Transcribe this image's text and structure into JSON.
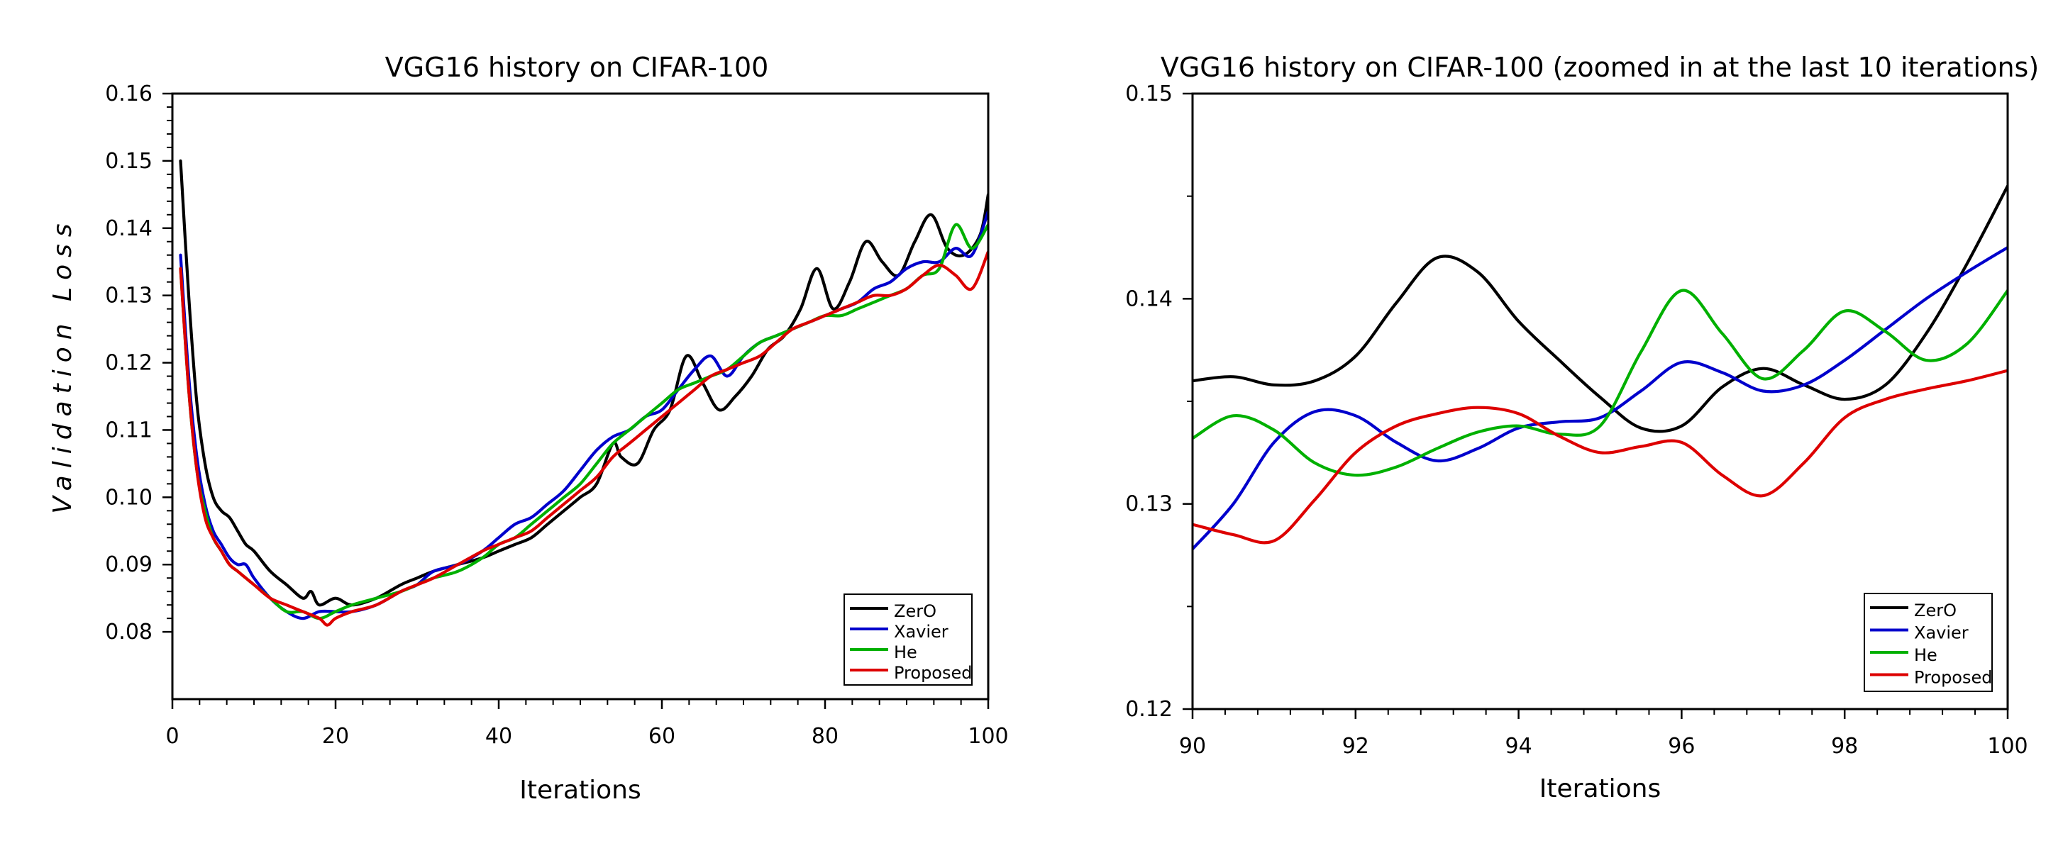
{
  "chart_data": [
    {
      "type": "line",
      "title": "VGG16 history on CIFAR-100",
      "xlabel": "Iterations",
      "ylabel": "Validation Loss",
      "xlim": [
        0,
        100
      ],
      "ylim": [
        0.07,
        0.16
      ],
      "xticks": [
        0,
        20,
        40,
        60,
        80,
        100
      ],
      "xtick_labels": [
        "0",
        "20",
        "40",
        "60",
        "80",
        "100"
      ],
      "yticks": [
        0.08,
        0.09,
        0.1,
        0.11,
        0.12,
        0.13,
        0.14,
        0.15,
        0.16
      ],
      "ytick_labels": [
        "0.08",
        "0.09",
        "0.10",
        "0.11",
        "0.12",
        "0.13",
        "0.14",
        "0.15",
        "0.16"
      ],
      "grid": false,
      "legend_position": "bottom-right",
      "series": [
        {
          "name": "ZerO",
          "color": "#000000",
          "x": [
            1,
            2,
            3,
            4,
            5,
            6,
            7,
            8,
            9,
            10,
            12,
            14,
            16,
            17,
            18,
            20,
            22,
            25,
            28,
            30,
            32,
            35,
            38,
            40,
            42,
            44,
            46,
            48,
            50,
            52,
            54,
            55,
            57,
            59,
            61,
            63,
            65,
            67,
            69,
            71,
            73,
            75,
            77,
            79,
            81,
            83,
            85,
            87,
            89,
            91,
            93,
            95,
            97,
            99,
            100
          ],
          "y": [
            0.15,
            0.13,
            0.114,
            0.105,
            0.1,
            0.098,
            0.097,
            0.095,
            0.093,
            0.092,
            0.089,
            0.087,
            0.085,
            0.086,
            0.084,
            0.085,
            0.084,
            0.085,
            0.087,
            0.088,
            0.089,
            0.09,
            0.091,
            0.092,
            0.093,
            0.094,
            0.096,
            0.098,
            0.1,
            0.102,
            0.108,
            0.106,
            0.105,
            0.11,
            0.113,
            0.121,
            0.117,
            0.113,
            0.115,
            0.118,
            0.122,
            0.124,
            0.128,
            0.134,
            0.128,
            0.132,
            0.138,
            0.135,
            0.133,
            0.138,
            0.142,
            0.137,
            0.136,
            0.139,
            0.145
          ]
        },
        {
          "name": "Xavier",
          "color": "#0000cc",
          "x": [
            1,
            2,
            3,
            4,
            5,
            6,
            7,
            8,
            9,
            10,
            12,
            14,
            16,
            18,
            20,
            22,
            25,
            28,
            30,
            32,
            35,
            38,
            40,
            42,
            44,
            46,
            48,
            50,
            52,
            54,
            56,
            58,
            60,
            62,
            64,
            66,
            68,
            70,
            72,
            74,
            76,
            78,
            80,
            82,
            84,
            86,
            88,
            90,
            92,
            94,
            96,
            98,
            100
          ],
          "y": [
            0.136,
            0.118,
            0.106,
            0.099,
            0.095,
            0.093,
            0.091,
            0.09,
            0.09,
            0.088,
            0.085,
            0.083,
            0.082,
            0.083,
            0.083,
            0.083,
            0.084,
            0.086,
            0.087,
            0.089,
            0.09,
            0.092,
            0.094,
            0.096,
            0.097,
            0.099,
            0.101,
            0.104,
            0.107,
            0.109,
            0.11,
            0.112,
            0.113,
            0.116,
            0.119,
            0.121,
            0.118,
            0.121,
            0.123,
            0.124,
            0.125,
            0.126,
            0.127,
            0.128,
            0.129,
            0.131,
            0.132,
            0.134,
            0.135,
            0.135,
            0.137,
            0.136,
            0.1425
          ]
        },
        {
          "name": "He",
          "color": "#00b000",
          "x": [
            1,
            2,
            3,
            4,
            5,
            6,
            7,
            8,
            9,
            10,
            12,
            14,
            16,
            18,
            20,
            22,
            25,
            28,
            30,
            32,
            35,
            38,
            40,
            42,
            44,
            46,
            48,
            50,
            52,
            54,
            56,
            58,
            60,
            62,
            64,
            66,
            68,
            70,
            72,
            74,
            76,
            78,
            80,
            82,
            84,
            86,
            88,
            90,
            92,
            94,
            96,
            98,
            100
          ],
          "y": [
            0.134,
            0.116,
            0.104,
            0.098,
            0.094,
            0.092,
            0.09,
            0.089,
            0.088,
            0.087,
            0.085,
            0.083,
            0.083,
            0.082,
            0.083,
            0.084,
            0.085,
            0.086,
            0.087,
            0.088,
            0.089,
            0.091,
            0.093,
            0.094,
            0.096,
            0.098,
            0.1,
            0.102,
            0.105,
            0.108,
            0.11,
            0.112,
            0.114,
            0.116,
            0.117,
            0.118,
            0.119,
            0.121,
            0.123,
            0.124,
            0.125,
            0.126,
            0.127,
            0.127,
            0.128,
            0.129,
            0.13,
            0.131,
            0.133,
            0.134,
            0.1405,
            0.137,
            0.1405
          ]
        },
        {
          "name": "Proposed",
          "color": "#dd0000",
          "x": [
            1,
            2,
            3,
            4,
            5,
            6,
            7,
            8,
            9,
            10,
            12,
            14,
            16,
            18,
            19,
            20,
            22,
            25,
            28,
            30,
            32,
            35,
            38,
            40,
            42,
            44,
            46,
            48,
            50,
            52,
            54,
            56,
            58,
            60,
            62,
            64,
            66,
            68,
            70,
            72,
            74,
            76,
            78,
            80,
            82,
            84,
            86,
            88,
            90,
            92,
            94,
            96,
            98,
            100
          ],
          "y": [
            0.134,
            0.116,
            0.104,
            0.097,
            0.094,
            0.092,
            0.09,
            0.089,
            0.088,
            0.087,
            0.085,
            0.084,
            0.083,
            0.082,
            0.081,
            0.082,
            0.083,
            0.084,
            0.086,
            0.087,
            0.088,
            0.09,
            0.092,
            0.093,
            0.094,
            0.095,
            0.097,
            0.099,
            0.101,
            0.103,
            0.106,
            0.108,
            0.11,
            0.112,
            0.114,
            0.116,
            0.118,
            0.119,
            0.12,
            0.121,
            0.123,
            0.125,
            0.126,
            0.127,
            0.128,
            0.129,
            0.13,
            0.13,
            0.131,
            0.133,
            0.1345,
            0.133,
            0.131,
            0.1365
          ]
        }
      ],
      "legend": [
        "ZerO",
        "Xavier",
        "He",
        "Proposed"
      ]
    },
    {
      "type": "line",
      "title": "VGG16 history on CIFAR-100  (zoomed in at the last 10 iterations)",
      "xlabel": "Iterations",
      "ylabel": "",
      "xlim": [
        90,
        100
      ],
      "ylim": [
        0.12,
        0.15
      ],
      "xticks": [
        90,
        92,
        94,
        96,
        98,
        100
      ],
      "xtick_labels": [
        "90",
        "92",
        "94",
        "96",
        "98",
        "100"
      ],
      "yticks": [
        0.12,
        0.13,
        0.14,
        0.15
      ],
      "ytick_labels": [
        "0.12",
        "0.13",
        "0.14",
        "0.15"
      ],
      "grid": false,
      "legend_position": "bottom-right",
      "series": [
        {
          "name": "ZerO",
          "color": "#000000",
          "x": [
            90,
            90.5,
            91,
            91.5,
            92,
            92.5,
            93,
            93.5,
            94,
            94.5,
            95,
            95.5,
            96,
            96.5,
            97,
            97.5,
            98,
            98.5,
            99,
            99.5,
            100
          ],
          "y": [
            0.136,
            0.1362,
            0.1358,
            0.136,
            0.1372,
            0.1398,
            0.142,
            0.1413,
            0.1389,
            0.137,
            0.1352,
            0.1337,
            0.1338,
            0.1357,
            0.1366,
            0.1358,
            0.1351,
            0.1358,
            0.1383,
            0.1417,
            0.1455
          ]
        },
        {
          "name": "Xavier",
          "color": "#0000cc",
          "x": [
            90,
            90.5,
            91,
            91.5,
            92,
            92.5,
            93,
            93.5,
            94,
            94.5,
            95,
            95.5,
            96,
            96.5,
            97,
            97.5,
            98,
            98.5,
            99,
            99.5,
            100
          ],
          "y": [
            0.1278,
            0.13,
            0.133,
            0.1345,
            0.1343,
            0.133,
            0.1321,
            0.1327,
            0.1337,
            0.134,
            0.1342,
            0.1355,
            0.1369,
            0.1364,
            0.1355,
            0.1358,
            0.137,
            0.1385,
            0.14,
            0.1413,
            0.1425
          ]
        },
        {
          "name": "He",
          "color": "#00b000",
          "x": [
            90,
            90.5,
            91,
            91.5,
            92,
            92.5,
            93,
            93.5,
            94,
            94.5,
            95,
            95.5,
            96,
            96.5,
            97,
            97.5,
            98,
            98.5,
            99,
            99.5,
            100
          ],
          "y": [
            0.1332,
            0.1343,
            0.1336,
            0.132,
            0.1314,
            0.1318,
            0.1327,
            0.1335,
            0.1338,
            0.1334,
            0.1338,
            0.1374,
            0.1404,
            0.1383,
            0.1361,
            0.1375,
            0.1394,
            0.1384,
            0.137,
            0.1378,
            0.1404
          ]
        },
        {
          "name": "Proposed",
          "color": "#dd0000",
          "x": [
            90,
            90.5,
            91,
            91.5,
            92,
            92.5,
            93,
            93.5,
            94,
            94.5,
            95,
            95.5,
            96,
            96.5,
            97,
            97.5,
            98,
            98.5,
            99,
            99.5,
            100
          ],
          "y": [
            0.129,
            0.1285,
            0.1282,
            0.1302,
            0.1325,
            0.1338,
            0.1344,
            0.1347,
            0.1344,
            0.1333,
            0.1325,
            0.1328,
            0.133,
            0.1314,
            0.1304,
            0.132,
            0.1342,
            0.1351,
            0.1356,
            0.136,
            0.1365
          ]
        }
      ],
      "legend": [
        "ZerO",
        "Xavier",
        "He",
        "Proposed"
      ]
    }
  ]
}
